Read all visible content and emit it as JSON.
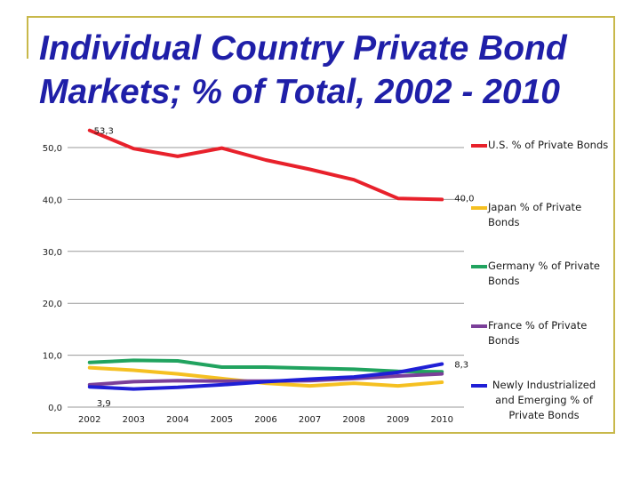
{
  "slide": {
    "title": "Individual Country Private Bond Markets; % of Total, 2002 - 2010"
  },
  "colors": {
    "frame": "#c8b84a",
    "title": "#1f1fa8",
    "axis_text": "#1a1a1a"
  },
  "chart_data": {
    "type": "line",
    "title": "",
    "xlabel": "",
    "ylabel": "",
    "x": [
      "2002",
      "2003",
      "2004",
      "2005",
      "2006",
      "2007",
      "2008",
      "2009",
      "2010"
    ],
    "ylim": [
      0,
      50
    ],
    "yticks": [
      "0,0",
      "10,0",
      "20,0",
      "30,0",
      "40,0",
      "50,0"
    ],
    "grid": true,
    "legend_position": "right",
    "series": [
      {
        "name": "U.S. % of Private Bonds",
        "color": "#e8212b",
        "values": [
          53.3,
          49.8,
          48.3,
          49.9,
          47.6,
          45.8,
          43.8,
          40.2,
          40.0
        ]
      },
      {
        "name": "Japan % of Private Bonds",
        "color": "#f5c021",
        "values": [
          7.6,
          7.1,
          6.4,
          5.5,
          4.6,
          4.1,
          4.6,
          4.1,
          4.8
        ]
      },
      {
        "name": "Germany % of Private Bonds",
        "color": "#21a35f",
        "values": [
          8.6,
          9.0,
          8.9,
          7.7,
          7.7,
          7.5,
          7.3,
          6.9,
          6.8
        ]
      },
      {
        "name": "France % of Private Bonds",
        "color": "#7b3f99",
        "values": [
          4.3,
          4.9,
          5.1,
          5.0,
          5.0,
          5.1,
          5.5,
          6.0,
          6.4
        ]
      },
      {
        "name": "Newly Industrialized and Emerging % of Private Bonds",
        "color": "#1f1fd6",
        "values": [
          3.9,
          3.5,
          3.8,
          4.3,
          4.9,
          5.4,
          5.8,
          6.7,
          8.3
        ]
      }
    ],
    "data_labels": [
      {
        "series": 0,
        "index": 0,
        "text": "53,3"
      },
      {
        "series": 0,
        "index": 8,
        "text": "40,0"
      },
      {
        "series": 4,
        "index": 0,
        "text": "3,9"
      },
      {
        "series": 4,
        "index": 8,
        "text": "8,3"
      }
    ]
  }
}
